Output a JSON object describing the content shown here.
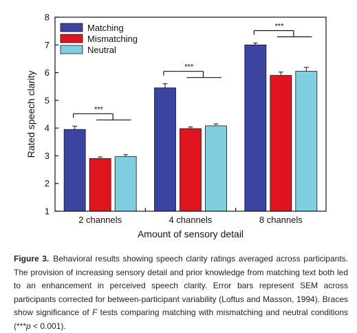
{
  "chart_data": {
    "type": "bar",
    "title": "",
    "xlabel": "Amount of sensory detail",
    "ylabel": "Rated speech clarity",
    "ylim": [
      1,
      8
    ],
    "yticks": [
      1,
      2,
      3,
      4,
      5,
      6,
      7,
      8
    ],
    "grid": false,
    "legend_position": "top-left",
    "categories": [
      "2 channels",
      "4 channels",
      "8 channels"
    ],
    "series": [
      {
        "name": "Matching",
        "color": "#3b44a0",
        "values": [
          3.95,
          5.45,
          7.0
        ],
        "errors": [
          0.12,
          0.15,
          0.07
        ]
      },
      {
        "name": "Mismatching",
        "color": "#e0141e",
        "values": [
          2.9,
          3.98,
          5.9
        ],
        "errors": [
          0.06,
          0.06,
          0.12
        ]
      },
      {
        "name": "Neutral",
        "color": "#80cfe0",
        "values": [
          2.97,
          4.08,
          6.05
        ],
        "errors": [
          0.07,
          0.07,
          0.14
        ]
      }
    ],
    "significance": [
      "***",
      "***",
      "***"
    ]
  },
  "caption": {
    "figure_label": "Figure 3.",
    "text_1": "Behavioral results showing speech clarity ratings averaged across participants. The provision of increasing sensory detail and prior knowledge from matching text both led to an enhancement in perceived speech clarity. Error bars represent SEM across participants corrected for between-participant variability (Loftus and Masson, 1994). Braces show significance of ",
    "f_symbol": "F",
    "text_2": " tests comparing matching with mismatching and neutral conditions (***",
    "p_symbol": "p",
    "text_3": " < 0.001)."
  }
}
